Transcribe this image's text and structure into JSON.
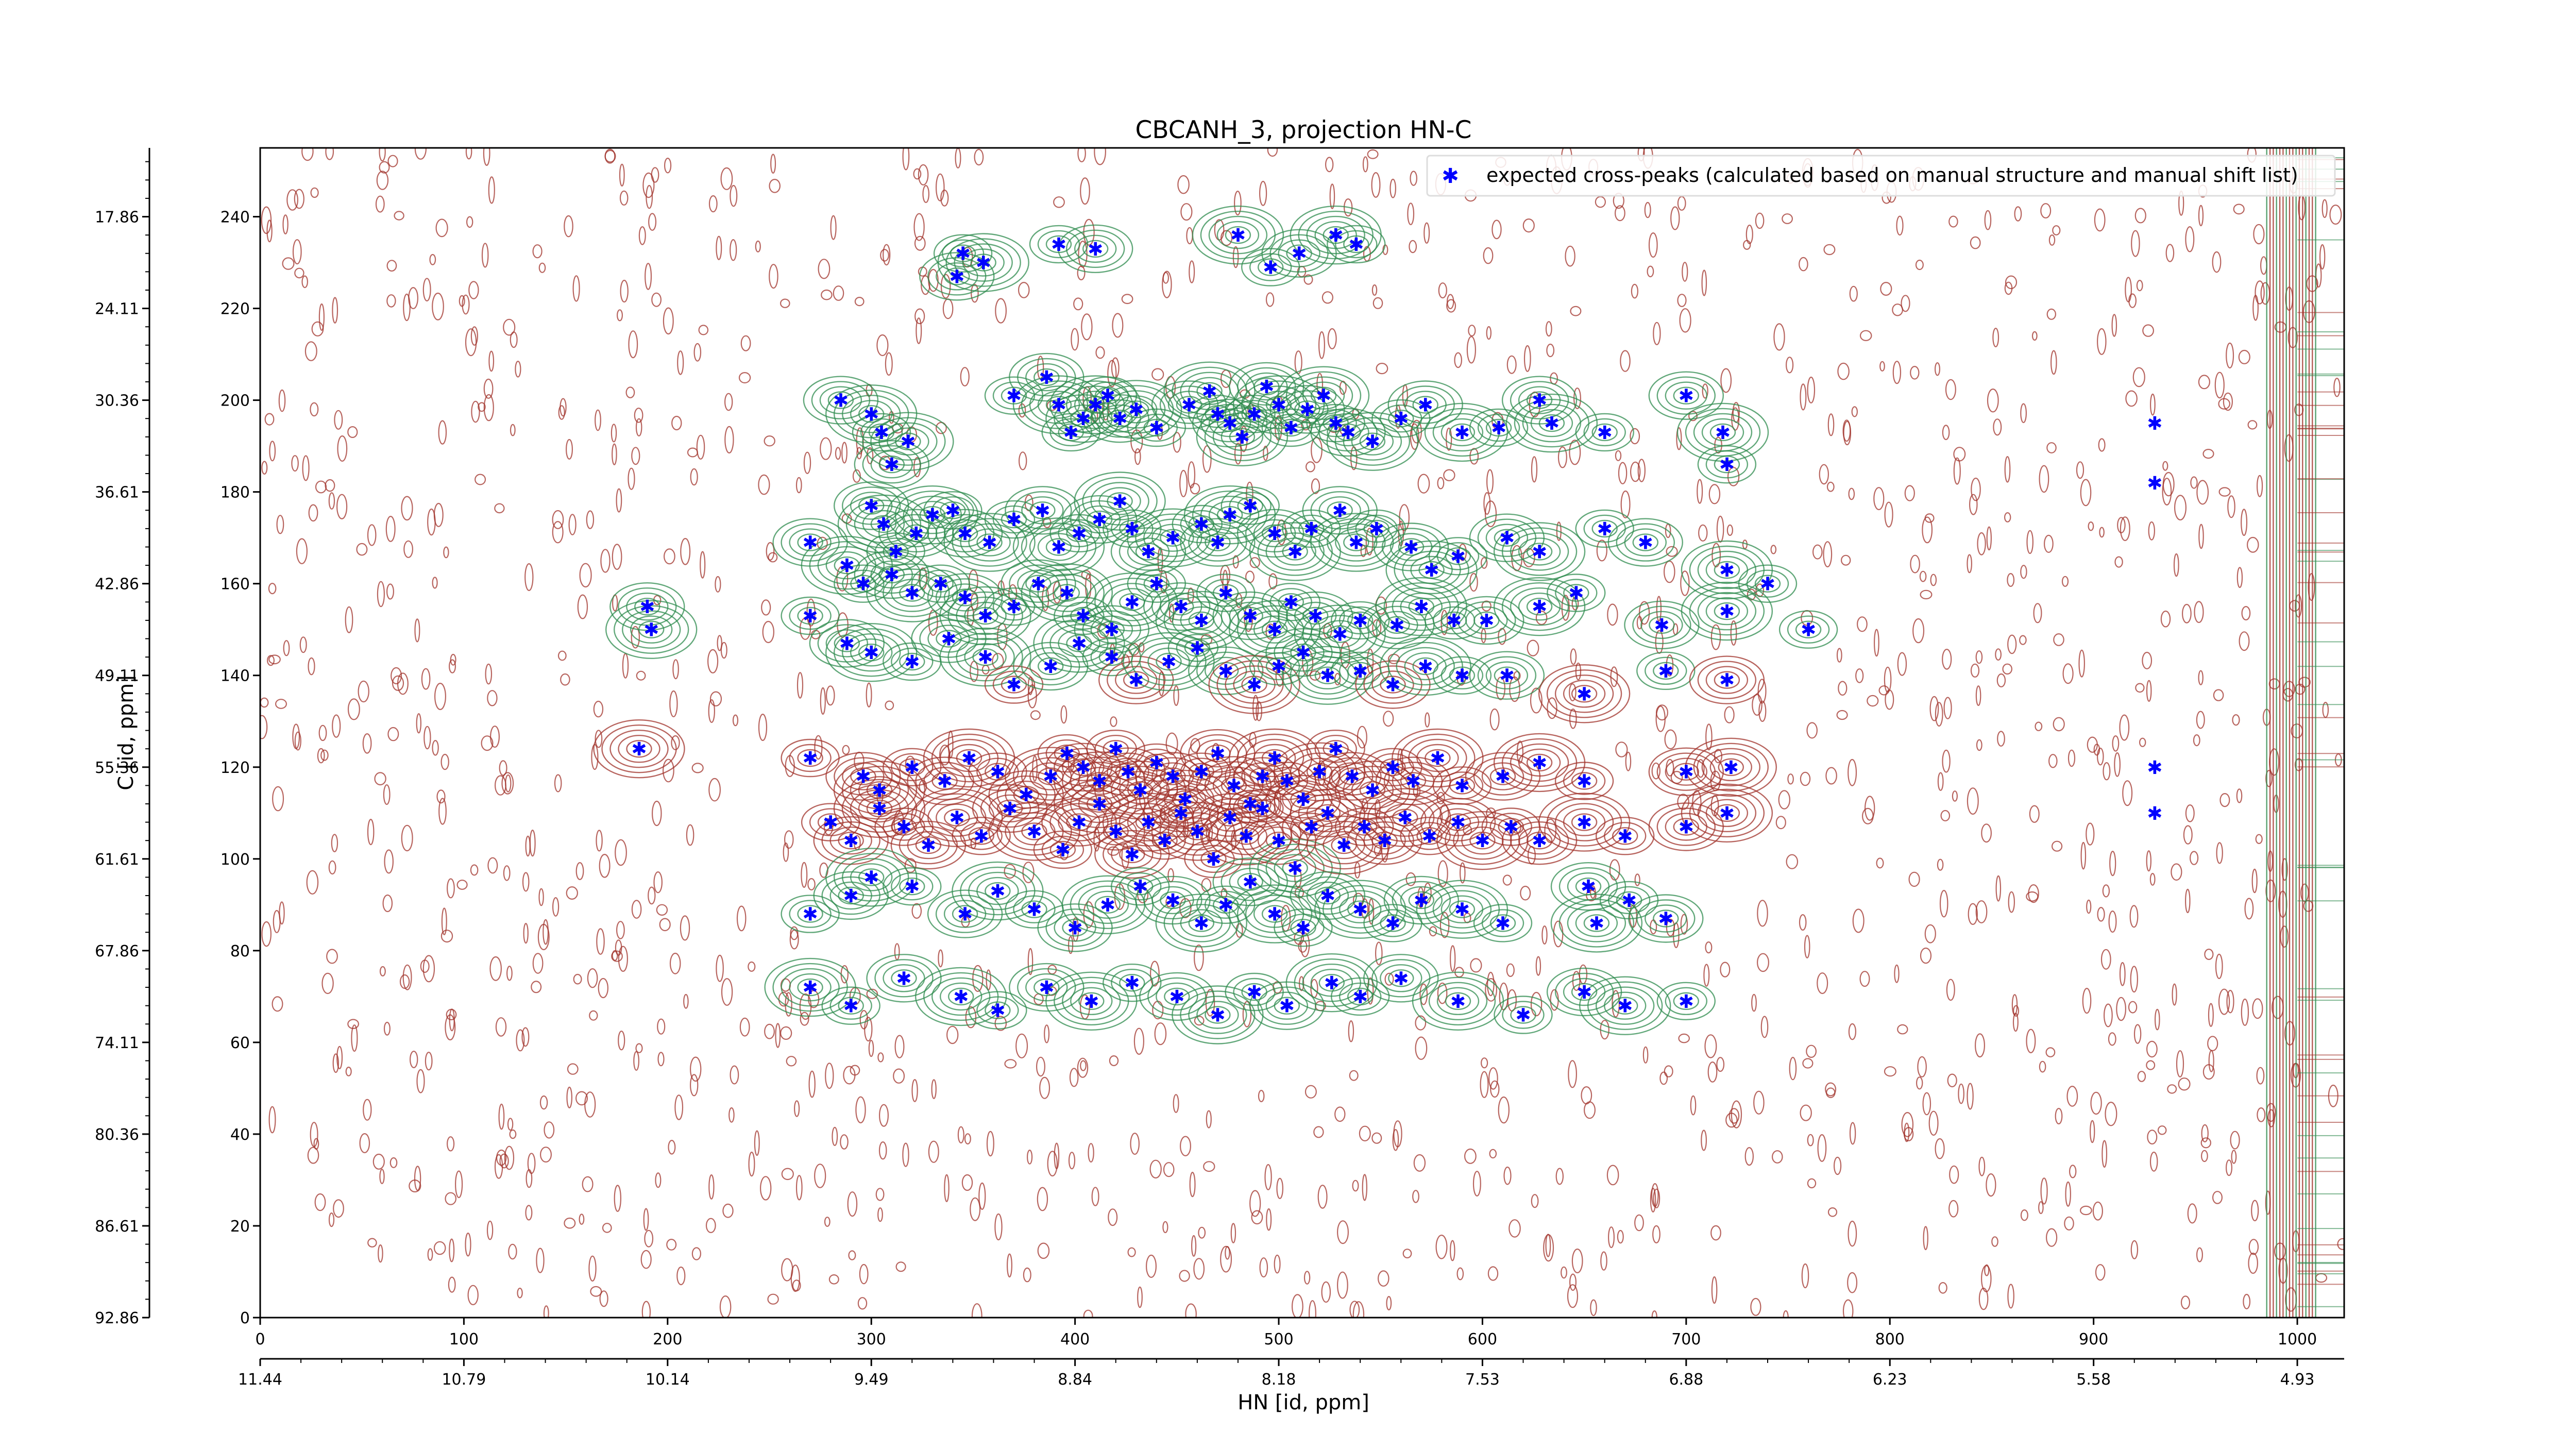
{
  "chart_data": {
    "type": "scatter",
    "title": "CBCANH_3, projection HN-C",
    "xlabel": "HN [id, ppm]",
    "ylabel": "C [id, ppm]",
    "x_index_range": [
      0,
      1023
    ],
    "y_index_range": [
      0,
      255
    ],
    "x_index_ticks": [
      "0",
      "100",
      "200",
      "300",
      "400",
      "500",
      "600",
      "700",
      "800",
      "900",
      "1000"
    ],
    "x_ppm_ticks": [
      "11.44",
      "10.79",
      "10.14",
      "9.49",
      "8.84",
      "8.18",
      "7.53",
      "6.88",
      "6.23",
      "5.58",
      "4.93"
    ],
    "y_index_ticks": [
      "0",
      "20",
      "40",
      "60",
      "80",
      "100",
      "120",
      "140",
      "160",
      "180",
      "200",
      "220",
      "240"
    ],
    "y_ppm_ticks": [
      "92.86",
      "86.61",
      "80.36",
      "74.11",
      "67.86",
      "61.61",
      "55.36",
      "49.11",
      "42.86",
      "36.61",
      "30.36",
      "24.11",
      "17.86"
    ],
    "legend": {
      "position": "top-right",
      "entries": [
        "expected cross-peaks (calculated based on manual structure and manual shift list)"
      ]
    },
    "colors": {
      "positive_contour": "#a0322a",
      "negative_contour": "#2e8b4e",
      "marker": "#0000ff"
    },
    "contour_levels": {
      "positive": "dark red",
      "negative": "green"
    },
    "series": [
      {
        "marker": "blue asterisk",
        "points": [
          [
            345,
            232
          ],
          [
            342,
            227
          ],
          [
            355,
            230
          ],
          [
            392,
            234
          ],
          [
            410,
            233
          ],
          [
            480,
            236
          ],
          [
            496,
            229
          ],
          [
            510,
            232
          ],
          [
            528,
            236
          ],
          [
            538,
            234
          ],
          [
            285,
            200
          ],
          [
            300,
            197
          ],
          [
            305,
            193
          ],
          [
            310,
            186
          ],
          [
            318,
            191
          ],
          [
            370,
            201
          ],
          [
            386,
            205
          ],
          [
            392,
            199
          ],
          [
            398,
            193
          ],
          [
            404,
            196
          ],
          [
            410,
            199
          ],
          [
            416,
            201
          ],
          [
            422,
            196
          ],
          [
            430,
            198
          ],
          [
            440,
            194
          ],
          [
            456,
            199
          ],
          [
            466,
            202
          ],
          [
            470,
            197
          ],
          [
            476,
            195
          ],
          [
            482,
            192
          ],
          [
            488,
            197
          ],
          [
            494,
            203
          ],
          [
            500,
            199
          ],
          [
            506,
            194
          ],
          [
            514,
            198
          ],
          [
            522,
            201
          ],
          [
            528,
            195
          ],
          [
            534,
            193
          ],
          [
            546,
            191
          ],
          [
            560,
            196
          ],
          [
            572,
            199
          ],
          [
            590,
            193
          ],
          [
            608,
            194
          ],
          [
            628,
            200
          ],
          [
            634,
            195
          ],
          [
            660,
            193
          ],
          [
            700,
            201
          ],
          [
            718,
            193
          ],
          [
            720,
            186
          ],
          [
            300,
            177
          ],
          [
            306,
            173
          ],
          [
            312,
            167
          ],
          [
            322,
            171
          ],
          [
            330,
            175
          ],
          [
            340,
            176
          ],
          [
            346,
            171
          ],
          [
            358,
            169
          ],
          [
            370,
            174
          ],
          [
            384,
            176
          ],
          [
            392,
            168
          ],
          [
            402,
            171
          ],
          [
            412,
            174
          ],
          [
            422,
            178
          ],
          [
            428,
            172
          ],
          [
            436,
            167
          ],
          [
            448,
            170
          ],
          [
            462,
            173
          ],
          [
            470,
            169
          ],
          [
            476,
            175
          ],
          [
            486,
            177
          ],
          [
            498,
            171
          ],
          [
            508,
            167
          ],
          [
            516,
            172
          ],
          [
            530,
            176
          ],
          [
            538,
            169
          ],
          [
            548,
            172
          ],
          [
            565,
            168
          ],
          [
            575,
            163
          ],
          [
            588,
            166
          ],
          [
            612,
            170
          ],
          [
            628,
            167
          ],
          [
            660,
            172
          ],
          [
            680,
            169
          ],
          [
            720,
            163
          ],
          [
            740,
            160
          ],
          [
            270,
            169
          ],
          [
            288,
            164
          ],
          [
            296,
            160
          ],
          [
            310,
            162
          ],
          [
            320,
            158
          ],
          [
            334,
            160
          ],
          [
            346,
            157
          ],
          [
            356,
            153
          ],
          [
            370,
            155
          ],
          [
            382,
            160
          ],
          [
            396,
            158
          ],
          [
            404,
            153
          ],
          [
            418,
            150
          ],
          [
            428,
            156
          ],
          [
            440,
            160
          ],
          [
            452,
            155
          ],
          [
            462,
            152
          ],
          [
            474,
            158
          ],
          [
            486,
            153
          ],
          [
            498,
            150
          ],
          [
            506,
            156
          ],
          [
            518,
            153
          ],
          [
            530,
            149
          ],
          [
            540,
            152
          ],
          [
            558,
            151
          ],
          [
            570,
            155
          ],
          [
            586,
            152
          ],
          [
            602,
            152
          ],
          [
            628,
            155
          ],
          [
            646,
            158
          ],
          [
            688,
            151
          ],
          [
            720,
            154
          ],
          [
            760,
            150
          ],
          [
            190,
            155
          ],
          [
            192,
            150
          ],
          [
            270,
            153
          ],
          [
            288,
            147
          ],
          [
            300,
            145
          ],
          [
            320,
            143
          ],
          [
            338,
            148
          ],
          [
            356,
            144
          ],
          [
            370,
            138
          ],
          [
            388,
            142
          ],
          [
            402,
            147
          ],
          [
            418,
            144
          ],
          [
            430,
            139
          ],
          [
            446,
            143
          ],
          [
            460,
            146
          ],
          [
            474,
            141
          ],
          [
            488,
            138
          ],
          [
            500,
            142
          ],
          [
            512,
            145
          ],
          [
            524,
            140
          ],
          [
            540,
            141
          ],
          [
            556,
            138
          ],
          [
            572,
            142
          ],
          [
            590,
            140
          ],
          [
            612,
            140
          ],
          [
            650,
            136
          ],
          [
            690,
            141
          ],
          [
            720,
            139
          ],
          [
            186,
            124
          ],
          [
            270,
            122
          ],
          [
            296,
            118
          ],
          [
            304,
            115
          ],
          [
            320,
            120
          ],
          [
            336,
            117
          ],
          [
            348,
            122
          ],
          [
            362,
            119
          ],
          [
            376,
            114
          ],
          [
            388,
            118
          ],
          [
            396,
            123
          ],
          [
            404,
            120
          ],
          [
            412,
            117
          ],
          [
            420,
            124
          ],
          [
            426,
            119
          ],
          [
            432,
            115
          ],
          [
            440,
            121
          ],
          [
            448,
            118
          ],
          [
            454,
            113
          ],
          [
            462,
            119
          ],
          [
            470,
            123
          ],
          [
            478,
            116
          ],
          [
            486,
            112
          ],
          [
            492,
            118
          ],
          [
            498,
            122
          ],
          [
            504,
            117
          ],
          [
            512,
            113
          ],
          [
            520,
            119
          ],
          [
            528,
            124
          ],
          [
            536,
            118
          ],
          [
            546,
            115
          ],
          [
            556,
            120
          ],
          [
            566,
            117
          ],
          [
            578,
            122
          ],
          [
            590,
            116
          ],
          [
            610,
            118
          ],
          [
            628,
            121
          ],
          [
            650,
            117
          ],
          [
            700,
            119
          ],
          [
            722,
            120
          ],
          [
            280,
            108
          ],
          [
            290,
            104
          ],
          [
            304,
            111
          ],
          [
            316,
            107
          ],
          [
            328,
            103
          ],
          [
            342,
            109
          ],
          [
            354,
            105
          ],
          [
            368,
            111
          ],
          [
            380,
            106
          ],
          [
            394,
            102
          ],
          [
            402,
            108
          ],
          [
            412,
            112
          ],
          [
            420,
            106
          ],
          [
            428,
            101
          ],
          [
            436,
            108
          ],
          [
            444,
            104
          ],
          [
            452,
            110
          ],
          [
            460,
            106
          ],
          [
            468,
            100
          ],
          [
            476,
            109
          ],
          [
            484,
            105
          ],
          [
            492,
            111
          ],
          [
            500,
            104
          ],
          [
            508,
            98
          ],
          [
            516,
            107
          ],
          [
            524,
            110
          ],
          [
            532,
            103
          ],
          [
            542,
            107
          ],
          [
            552,
            104
          ],
          [
            562,
            109
          ],
          [
            574,
            105
          ],
          [
            588,
            108
          ],
          [
            600,
            104
          ],
          [
            614,
            107
          ],
          [
            628,
            104
          ],
          [
            650,
            108
          ],
          [
            670,
            105
          ],
          [
            700,
            107
          ],
          [
            720,
            110
          ],
          [
            270,
            88
          ],
          [
            290,
            92
          ],
          [
            300,
            96
          ],
          [
            320,
            94
          ],
          [
            346,
            88
          ],
          [
            362,
            93
          ],
          [
            380,
            89
          ],
          [
            400,
            85
          ],
          [
            416,
            90
          ],
          [
            432,
            94
          ],
          [
            448,
            91
          ],
          [
            462,
            86
          ],
          [
            474,
            90
          ],
          [
            486,
            95
          ],
          [
            498,
            88
          ],
          [
            512,
            85
          ],
          [
            524,
            92
          ],
          [
            540,
            89
          ],
          [
            556,
            86
          ],
          [
            570,
            91
          ],
          [
            590,
            89
          ],
          [
            610,
            86
          ],
          [
            652,
            94
          ],
          [
            656,
            86
          ],
          [
            672,
            91
          ],
          [
            690,
            87
          ],
          [
            270,
            72
          ],
          [
            290,
            68
          ],
          [
            316,
            74
          ],
          [
            344,
            70
          ],
          [
            362,
            67
          ],
          [
            386,
            72
          ],
          [
            408,
            69
          ],
          [
            428,
            73
          ],
          [
            450,
            70
          ],
          [
            470,
            66
          ],
          [
            488,
            71
          ],
          [
            504,
            68
          ],
          [
            526,
            73
          ],
          [
            540,
            70
          ],
          [
            560,
            74
          ],
          [
            588,
            69
          ],
          [
            620,
            66
          ],
          [
            650,
            71
          ],
          [
            670,
            68
          ],
          [
            700,
            69
          ],
          [
            930,
            195
          ],
          [
            930,
            182
          ],
          [
            930,
            120
          ],
          [
            930,
            110
          ]
        ]
      }
    ]
  }
}
